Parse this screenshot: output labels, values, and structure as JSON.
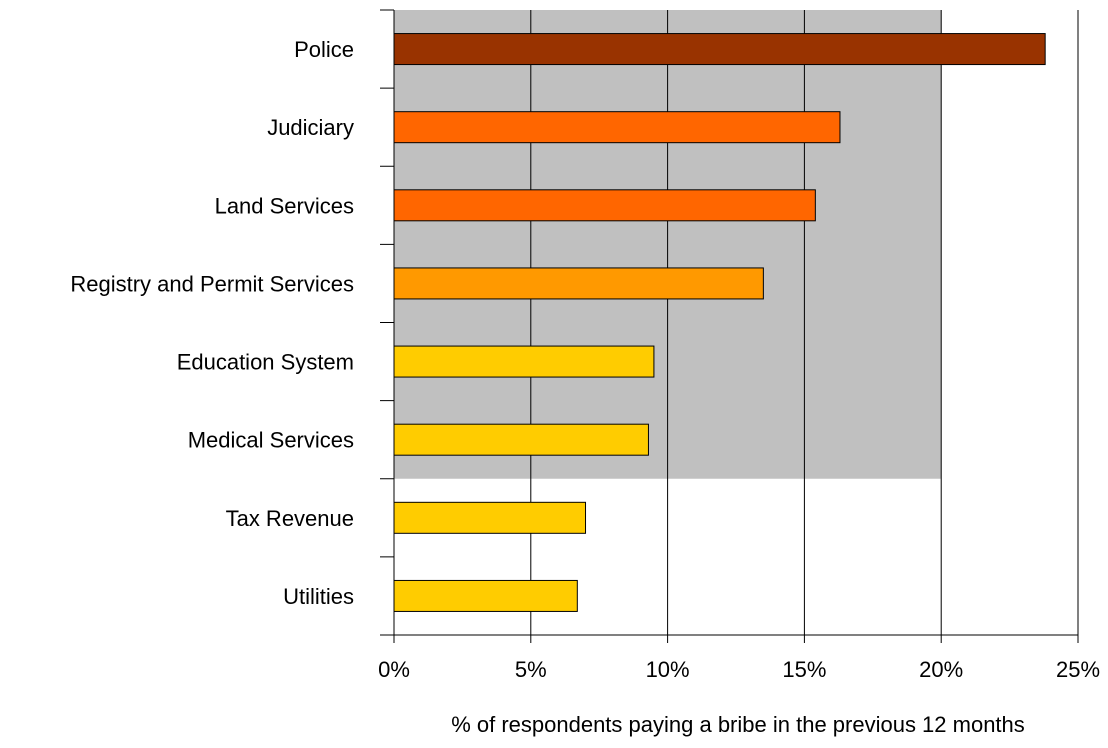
{
  "chart_data": {
    "type": "bar",
    "orientation": "horizontal",
    "categories": [
      "Police",
      "Judiciary",
      "Land Services",
      "Registry and Permit Services",
      "Education System",
      "Medical Services",
      "Tax Revenue",
      "Utilities"
    ],
    "values": [
      23.8,
      16.3,
      15.4,
      13.5,
      9.5,
      9.3,
      7.0,
      6.7
    ],
    "bar_colors": [
      "#993300",
      "#ff6600",
      "#ff6600",
      "#ff9900",
      "#ffcc00",
      "#ffcc00",
      "#ffcc00",
      "#ffcc00"
    ],
    "xlabel": "% of respondents paying a bribe in the previous 12 months",
    "xlim": [
      0,
      25
    ],
    "xticks": [
      "0%",
      "5%",
      "10%",
      "15%",
      "20%",
      "25%"
    ],
    "grid": true,
    "shaded_band": {
      "x_range": [
        0,
        20
      ],
      "from_category": "Police",
      "to_category": "Medical Services",
      "color": "#c0c0c0"
    }
  }
}
